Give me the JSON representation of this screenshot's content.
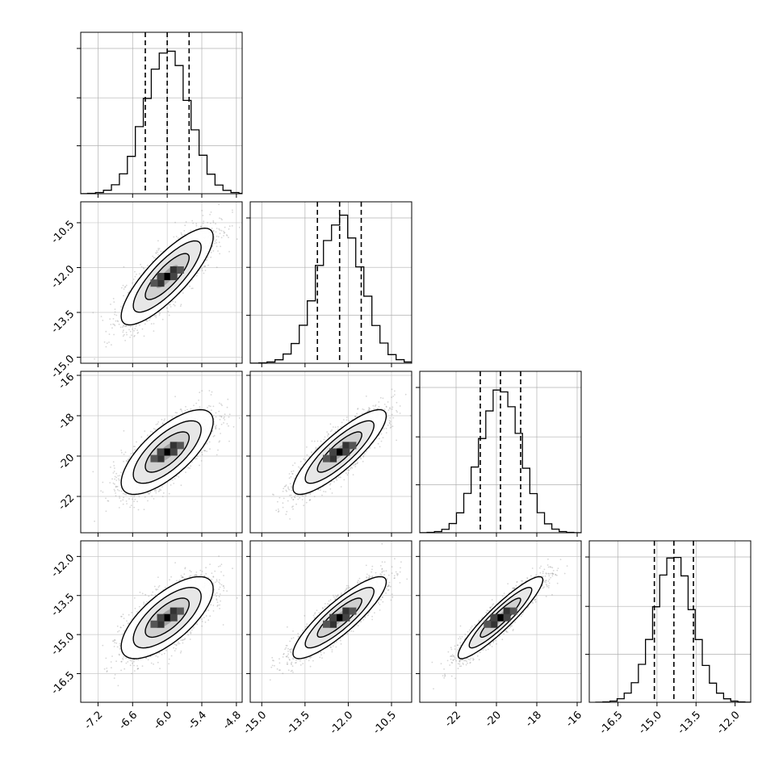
{
  "chart_data": {
    "type": "corner",
    "parameters": 4,
    "grid": true,
    "axes": [
      {
        "range": [
          -7.5,
          -4.7
        ],
        "ticks": [
          "-7.2",
          "-6.6",
          "-6.0",
          "-5.4",
          "-4.8"
        ],
        "tick_values": [
          -7.2,
          -6.6,
          -6.0,
          -5.4,
          -4.8
        ]
      },
      {
        "range": [
          -15.4,
          -9.8
        ],
        "ticks": [
          "-15.0",
          "-13.5",
          "-12.0",
          "-10.5"
        ],
        "tick_values": [
          -15.0,
          -13.5,
          -12.0,
          -10.5
        ]
      },
      {
        "range": [
          -23.8,
          -15.8
        ],
        "ticks": [
          "-22",
          "-20",
          "-18",
          "-16"
        ],
        "tick_values": [
          -22,
          -20,
          -18,
          -16
        ]
      },
      {
        "range": [
          -17.6,
          -11.4
        ],
        "ticks": [
          "-16.5",
          "-15.0",
          "-13.5",
          "-12.0"
        ],
        "tick_values": [
          -16.5,
          -15.0,
          -13.5,
          -12.0
        ]
      }
    ],
    "y_axes": [
      null,
      {
        "range": [
          -15.2,
          -9.8
        ],
        "ticks": [
          "-10.5",
          "-12.0",
          "-13.5",
          "-15.0"
        ],
        "tick_values": [
          -10.5,
          -12.0,
          -13.5,
          -15.0
        ]
      },
      {
        "range": [
          -23.8,
          -15.8
        ],
        "ticks": [
          "-16",
          "-18",
          "-20",
          "-22"
        ],
        "tick_values": [
          -16,
          -18,
          -20,
          -22
        ]
      },
      {
        "range": [
          -17.6,
          -11.4
        ],
        "ticks": [
          "-12.0",
          "-13.5",
          "-15.0",
          "-16.5"
        ],
        "tick_values": [
          -12.0,
          -13.5,
          -15.0,
          -16.5
        ]
      }
    ],
    "marginals": [
      {
        "mean": -6.0,
        "sigma": 0.38,
        "quantiles": [
          -6.38,
          -6.0,
          -5.62
        ]
      },
      {
        "mean": -12.3,
        "sigma": 0.77,
        "quantiles": [
          -13.07,
          -12.3,
          -11.55
        ]
      },
      {
        "mean": -19.8,
        "sigma": 1.0,
        "quantiles": [
          -20.8,
          -19.8,
          -18.8
        ]
      },
      {
        "mean": -14.35,
        "sigma": 0.75,
        "quantiles": [
          -15.1,
          -14.35,
          -13.6
        ]
      }
    ],
    "correlations": {
      "1-0": 0.82,
      "2-0": 0.72,
      "2-1": 0.85,
      "3-0": 0.7,
      "3-1": 0.87,
      "3-2": 0.92
    }
  }
}
